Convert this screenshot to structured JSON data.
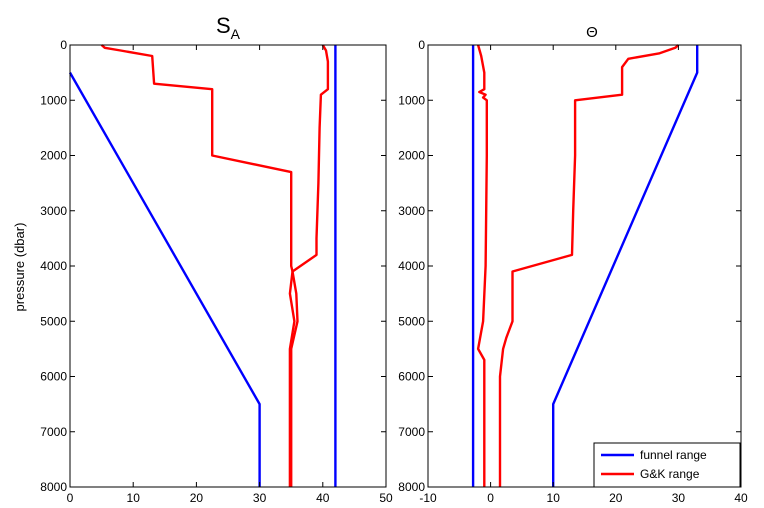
{
  "chart_data": [
    {
      "type": "line",
      "title": "S",
      "title_subscript": "A",
      "xlabel": "",
      "ylabel": "pressure (dbar)",
      "xlim": [
        0,
        50
      ],
      "ylim": [
        0,
        8000
      ],
      "y_reversed": true,
      "x_ticks": [
        0,
        10,
        20,
        30,
        40,
        50
      ],
      "y_ticks": [
        0,
        1000,
        2000,
        3000,
        4000,
        5000,
        6000,
        7000,
        8000
      ],
      "grid": false,
      "series": [
        {
          "color": "#0000ff",
          "points": [
            [
              0,
              500
            ],
            [
              30,
              6500
            ],
            [
              30,
              8000
            ]
          ]
        },
        {
          "color": "#0000ff",
          "points": [
            [
              42,
              0
            ],
            [
              42,
              8000
            ]
          ]
        },
        {
          "color": "#ff0000",
          "points": [
            [
              5,
              0
            ],
            [
              5.5,
              50
            ],
            [
              8,
              100
            ],
            [
              13,
              200
            ],
            [
              13.3,
              700
            ],
            [
              22.5,
              800
            ],
            [
              22.5,
              2000
            ],
            [
              35,
              2300
            ],
            [
              35,
              4000
            ],
            [
              35.2,
              4100
            ],
            [
              35.8,
              4500
            ],
            [
              36,
              5000
            ],
            [
              35,
              5500
            ],
            [
              35,
              6000
            ],
            [
              35,
              8000
            ]
          ]
        },
        {
          "color": "#ff0000",
          "points": [
            [
              40,
              0
            ],
            [
              40.5,
              100
            ],
            [
              40.8,
              300
            ],
            [
              40.8,
              800
            ],
            [
              39.7,
              900
            ],
            [
              39.5,
              1500
            ],
            [
              39.3,
              2500
            ],
            [
              39,
              3500
            ],
            [
              39,
              3800
            ],
            [
              35.2,
              4100
            ],
            [
              34.8,
              4500
            ],
            [
              35.5,
              5000
            ],
            [
              34.8,
              5500
            ],
            [
              34.8,
              6000
            ],
            [
              34.8,
              8000
            ]
          ]
        }
      ]
    },
    {
      "type": "line",
      "title": "Θ",
      "xlabel": "",
      "ylabel": "",
      "xlim": [
        -10,
        40
      ],
      "ylim": [
        0,
        8000
      ],
      "y_reversed": true,
      "x_ticks": [
        -10,
        0,
        10,
        20,
        30,
        40
      ],
      "y_ticks": [
        0,
        1000,
        2000,
        3000,
        4000,
        5000,
        6000,
        7000,
        8000
      ],
      "grid": false,
      "series": [
        {
          "color": "#0000ff",
          "points": [
            [
              33,
              0
            ],
            [
              33,
              500
            ],
            [
              10,
              6500
            ],
            [
              10,
              8000
            ]
          ]
        },
        {
          "color": "#0000ff",
          "points": [
            [
              -2.8,
              0
            ],
            [
              -2.8,
              8000
            ]
          ]
        },
        {
          "color": "#ff0000",
          "points": [
            [
              30,
              0
            ],
            [
              29.5,
              50
            ],
            [
              27,
              150
            ],
            [
              22,
              250
            ],
            [
              21,
              400
            ],
            [
              21,
              900
            ],
            [
              13.5,
              1000
            ],
            [
              13.5,
              2000
            ],
            [
              13.2,
              3000
            ],
            [
              13,
              3800
            ],
            [
              3.5,
              4100
            ],
            [
              3.5,
              5000
            ],
            [
              2.5,
              5300
            ],
            [
              2,
              5500
            ],
            [
              1.5,
              6000
            ],
            [
              1.5,
              6500
            ],
            [
              1.5,
              8000
            ]
          ]
        },
        {
          "color": "#ff0000",
          "points": [
            [
              -2,
              0
            ],
            [
              -1.5,
              200
            ],
            [
              -1,
              500
            ],
            [
              -1,
              800
            ],
            [
              -1.8,
              850
            ],
            [
              -0.8,
              900
            ],
            [
              -1.2,
              950
            ],
            [
              -0.6,
              1000
            ],
            [
              -0.6,
              2000
            ],
            [
              -0.7,
              3000
            ],
            [
              -0.8,
              4000
            ],
            [
              -1.2,
              5000
            ],
            [
              -2,
              5500
            ],
            [
              -1,
              5700
            ],
            [
              -1,
              6000
            ],
            [
              -1,
              8000
            ]
          ]
        }
      ],
      "legend": {
        "position": "bottom-right",
        "entries": [
          {
            "label": "funnel range",
            "color": "#0000ff"
          },
          {
            "label": "G&K range",
            "color": "#ff0000"
          }
        ]
      }
    }
  ]
}
